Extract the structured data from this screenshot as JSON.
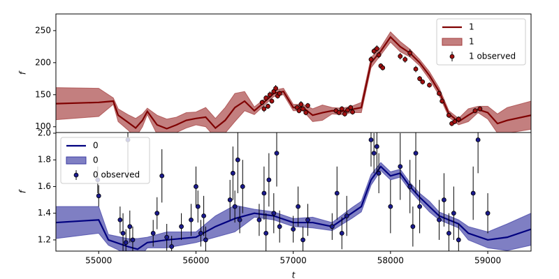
{
  "chart_data": [
    {
      "type": "line",
      "ylabel": "f",
      "xlim": [
        54560,
        59445
      ],
      "ylim": [
        91,
        276
      ],
      "yticks": [
        100,
        150,
        200,
        250
      ],
      "legend": "upper right",
      "series": [
        {
          "name": "1",
          "kind": "line",
          "color": "#7f0000",
          "x": [
            54560,
            55000,
            55150,
            55200,
            55300,
            55380,
            55450,
            55500,
            55600,
            55700,
            55800,
            55900,
            56000,
            56100,
            56200,
            56300,
            56400,
            56500,
            56600,
            56700,
            56800,
            56900,
            57000,
            57100,
            57200,
            57300,
            57400,
            57500,
            57600,
            57700,
            57800,
            57900,
            58000,
            58100,
            58200,
            58300,
            58400,
            58500,
            58600,
            58700,
            58800,
            58900,
            59000,
            59100,
            59200,
            59445
          ],
          "values": [
            136,
            138,
            140,
            118,
            107,
            98,
            110,
            124,
            103,
            97,
            103,
            110,
            113,
            115,
            98,
            110,
            130,
            140,
            125,
            138,
            152,
            155,
            130,
            130,
            118,
            122,
            125,
            124,
            127,
            130,
            200,
            218,
            240,
            225,
            215,
            200,
            180,
            155,
            120,
            108,
            118,
            127,
            122,
            105,
            110,
            118
          ]
        },
        {
          "name": "1",
          "kind": "band",
          "color": "#a33b3b",
          "x": [
            54560,
            55000,
            55150,
            55200,
            55300,
            55380,
            55450,
            55500,
            55600,
            55700,
            55800,
            55900,
            56000,
            56100,
            56200,
            56300,
            56400,
            56500,
            56600,
            56700,
            56800,
            56900,
            57000,
            57100,
            57200,
            57300,
            57400,
            57500,
            57600,
            57700,
            57800,
            57900,
            58000,
            58100,
            58200,
            58300,
            58400,
            58500,
            58600,
            58700,
            58800,
            58900,
            59000,
            59100,
            59200,
            59445
          ],
          "lower": [
            111,
            116,
            135,
            108,
            95,
            83,
            100,
            119,
            88,
            82,
            91,
            98,
            103,
            100,
            83,
            90,
            108,
            125,
            119,
            133,
            147,
            150,
            125,
            125,
            108,
            110,
            120,
            119,
            122,
            122,
            192,
            212,
            232,
            217,
            209,
            195,
            174,
            149,
            115,
            103,
            108,
            122,
            112,
            90,
            90,
            96
          ],
          "upper": [
            161,
            160,
            145,
            128,
            119,
            113,
            120,
            129,
            118,
            112,
            115,
            122,
            123,
            130,
            113,
            130,
            152,
            155,
            131,
            143,
            157,
            160,
            135,
            135,
            128,
            134,
            130,
            129,
            132,
            138,
            208,
            224,
            248,
            233,
            221,
            205,
            186,
            161,
            125,
            113,
            128,
            132,
            132,
            120,
            130,
            140
          ]
        },
        {
          "name": "1 observed",
          "kind": "errorbar",
          "color": "#a01010",
          "x": [
            56680,
            56700,
            56720,
            56740,
            56760,
            56780,
            56800,
            56820,
            56840,
            56860,
            57040,
            57060,
            57080,
            57100,
            57130,
            57150,
            57440,
            57470,
            57500,
            57530,
            57560,
            57590,
            57610,
            57800,
            57830,
            57860,
            57880,
            57900,
            57920,
            58100,
            58150,
            58200,
            58260,
            58300,
            58330,
            58400,
            58500,
            58530,
            58600,
            58630,
            58660,
            58700,
            58870,
            58920
          ],
          "values": [
            138,
            128,
            145,
            132,
            150,
            140,
            155,
            160,
            148,
            152,
            130,
            125,
            135,
            128,
            122,
            133,
            125,
            122,
            128,
            120,
            126,
            130,
            123,
            205,
            218,
            222,
            212,
            195,
            192,
            210,
            205,
            215,
            190,
            175,
            170,
            165,
            152,
            140,
            118,
            105,
            108,
            112,
            125,
            128
          ],
          "errors": [
            4,
            5,
            4,
            4,
            5,
            4,
            4,
            5,
            4,
            4,
            4,
            4,
            5,
            4,
            4,
            4,
            4,
            4,
            4,
            4,
            4,
            4,
            4,
            5,
            5,
            5,
            5,
            4,
            4,
            5,
            5,
            6,
            5,
            4,
            4,
            4,
            4,
            4,
            4,
            4,
            4,
            4,
            4,
            4
          ]
        }
      ]
    },
    {
      "type": "line",
      "ylabel": "f",
      "xlabel": "t",
      "xlim": [
        54560,
        59445
      ],
      "ylim": [
        1.116,
        2.005
      ],
      "xticks": [
        55000,
        56000,
        57000,
        58000,
        59000
      ],
      "yticks": [
        1.2,
        1.4,
        1.6,
        1.8,
        {
          "value": 2,
          "label": "2.0"
        }
      ],
      "legend": "upper left",
      "series": [
        {
          "name": "0",
          "kind": "line",
          "color": "#00007f",
          "x": [
            54560,
            55000,
            55100,
            55300,
            55400,
            55500,
            55700,
            56000,
            56200,
            56400,
            56600,
            56800,
            57000,
            57200,
            57400,
            57600,
            57700,
            57800,
            57900,
            58000,
            58100,
            58200,
            58300,
            58400,
            58500,
            58700,
            58800,
            59000,
            59200,
            59445
          ],
          "values": [
            1.33,
            1.35,
            1.2,
            1.15,
            1.13,
            1.18,
            1.2,
            1.22,
            1.3,
            1.36,
            1.4,
            1.38,
            1.33,
            1.33,
            1.3,
            1.4,
            1.45,
            1.65,
            1.75,
            1.68,
            1.7,
            1.6,
            1.52,
            1.45,
            1.38,
            1.32,
            1.25,
            1.2,
            1.22,
            1.28
          ]
        },
        {
          "name": "0",
          "kind": "band",
          "color": "#3b3ba3",
          "x": [
            54560,
            55000,
            55100,
            55300,
            55400,
            55500,
            55700,
            56000,
            56200,
            56400,
            56600,
            56800,
            57000,
            57200,
            57400,
            57600,
            57700,
            57800,
            57900,
            58000,
            58100,
            58200,
            58300,
            58400,
            58500,
            58700,
            58800,
            59000,
            59200,
            59445
          ],
          "lower": [
            1.21,
            1.25,
            1.16,
            1.09,
            1.05,
            1.14,
            1.14,
            1.18,
            1.22,
            1.26,
            1.37,
            1.35,
            1.3,
            1.29,
            1.27,
            1.36,
            1.41,
            1.61,
            1.72,
            1.65,
            1.67,
            1.57,
            1.49,
            1.41,
            1.35,
            1.29,
            1.2,
            1.14,
            1.12,
            1.16
          ],
          "upper": [
            1.45,
            1.45,
            1.24,
            1.21,
            1.21,
            1.22,
            1.26,
            1.26,
            1.38,
            1.46,
            1.43,
            1.41,
            1.36,
            1.37,
            1.33,
            1.44,
            1.49,
            1.69,
            1.78,
            1.71,
            1.73,
            1.63,
            1.55,
            1.49,
            1.41,
            1.35,
            1.3,
            1.26,
            1.32,
            1.4
          ]
        },
        {
          "name": "0 observed",
          "kind": "errorbar",
          "color": "#1a1a8c",
          "x": [
            54990,
            55000,
            55220,
            55250,
            55280,
            55300,
            55320,
            55350,
            55560,
            55600,
            55650,
            55700,
            55750,
            55850,
            55950,
            56000,
            56020,
            56050,
            56080,
            56100,
            56350,
            56380,
            56400,
            56430,
            56450,
            56480,
            56650,
            56700,
            56720,
            56750,
            56800,
            56830,
            56860,
            57000,
            57050,
            57100,
            57150,
            57400,
            57450,
            57500,
            57550,
            57800,
            57830,
            57860,
            57880,
            58000,
            58100,
            58200,
            58230,
            58260,
            58300,
            58500,
            58550,
            58600,
            58650,
            58700,
            58850,
            58900,
            59000
          ],
          "values": [
            1.65,
            1.53,
            1.35,
            1.25,
            1.18,
            1.95,
            1.3,
            1.2,
            1.25,
            1.4,
            1.68,
            1.22,
            1.15,
            1.3,
            1.35,
            1.6,
            1.45,
            1.25,
            1.38,
            1.2,
            1.5,
            1.7,
            1.45,
            1.8,
            1.35,
            1.6,
            1.35,
            1.55,
            1.25,
            1.65,
            1.4,
            1.85,
            1.3,
            1.28,
            1.45,
            1.2,
            1.35,
            1.3,
            1.55,
            1.25,
            1.38,
            1.95,
            1.85,
            1.9,
            1.7,
            1.45,
            1.75,
            1.6,
            1.3,
            1.85,
            1.45,
            1.35,
            1.5,
            1.25,
            1.4,
            1.2,
            1.55,
            1.95,
            1.4
          ],
          "errors": [
            0.1,
            0.08,
            0.1,
            0.15,
            0.1,
            0.3,
            0.12,
            0.1,
            0.1,
            0.12,
            0.2,
            0.1,
            0.08,
            0.1,
            0.12,
            0.15,
            0.12,
            0.1,
            0.15,
            0.1,
            0.15,
            0.2,
            0.12,
            0.25,
            0.1,
            0.2,
            0.12,
            0.2,
            0.15,
            0.2,
            0.15,
            0.25,
            0.12,
            0.1,
            0.15,
            0.1,
            0.12,
            0.1,
            0.2,
            0.12,
            0.15,
            0.2,
            0.15,
            0.2,
            0.15,
            0.2,
            0.25,
            0.2,
            0.15,
            0.3,
            0.2,
            0.15,
            0.2,
            0.15,
            0.2,
            0.12,
            0.2,
            0.25,
            0.15
          ]
        }
      ]
    }
  ]
}
